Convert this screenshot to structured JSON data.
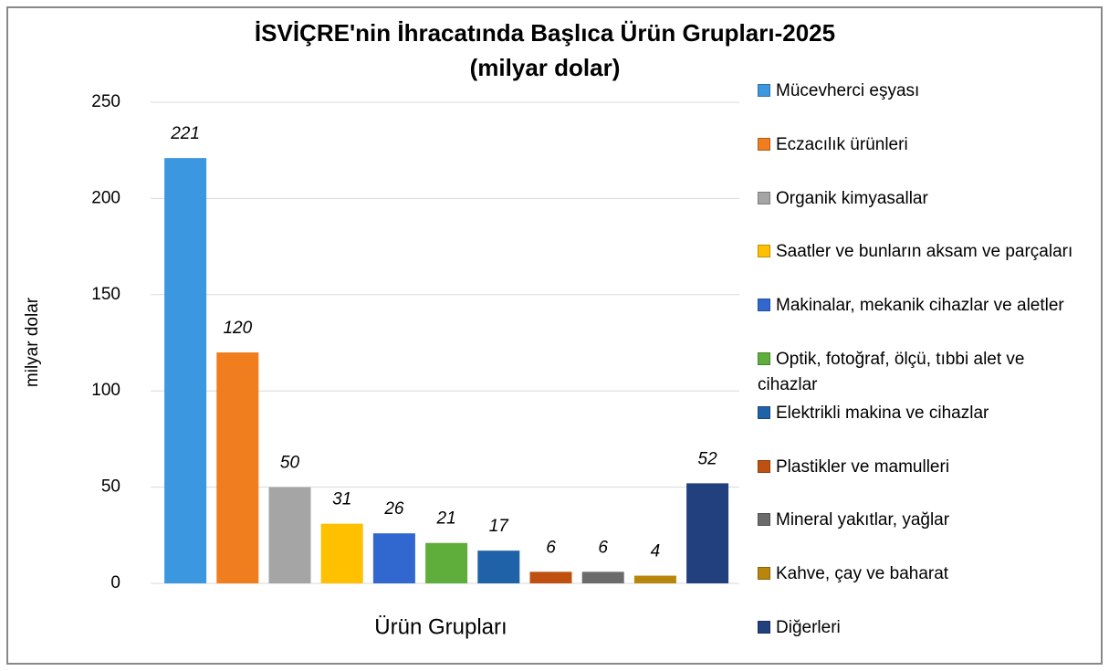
{
  "chart_data": {
    "type": "bar",
    "title": "İSVİÇRE'nin İhracatında Başlıca Ürün Grupları-2025",
    "subtitle": "(milyar dolar)",
    "ylabel": "milyar dolar",
    "xlabel": "Ürün Grupları",
    "categories": [
      "Mücevherci eşyası",
      "Eczacılık ürünleri",
      "Organik kimyasallar",
      "Saatler ve bunların aksam ve parçaları",
      "Makinalar, mekanik cihazlar ve aletler",
      "Optik, fotoğraf, ölçü, tıbbi alet ve cihazlar",
      "Elektrikli makina ve cihazlar",
      "Plastikler ve mamulleri",
      "Mineral yakıtlar, yağlar",
      "Kahve, çay ve baharat",
      "Diğerleri"
    ],
    "values": [
      221,
      120,
      50,
      31,
      26,
      21,
      17,
      6,
      6,
      4,
      52
    ],
    "colors": [
      "#3b97e0",
      "#f07d1e",
      "#a5a5a5",
      "#ffc000",
      "#3168d0",
      "#5fae3b",
      "#1f62a8",
      "#c0500f",
      "#6b6b6b",
      "#b8860b",
      "#223f7e"
    ],
    "ylim": [
      0,
      250
    ],
    "yticks": [
      0,
      50,
      100,
      150,
      200,
      250
    ],
    "grid": true,
    "legend": "right"
  }
}
